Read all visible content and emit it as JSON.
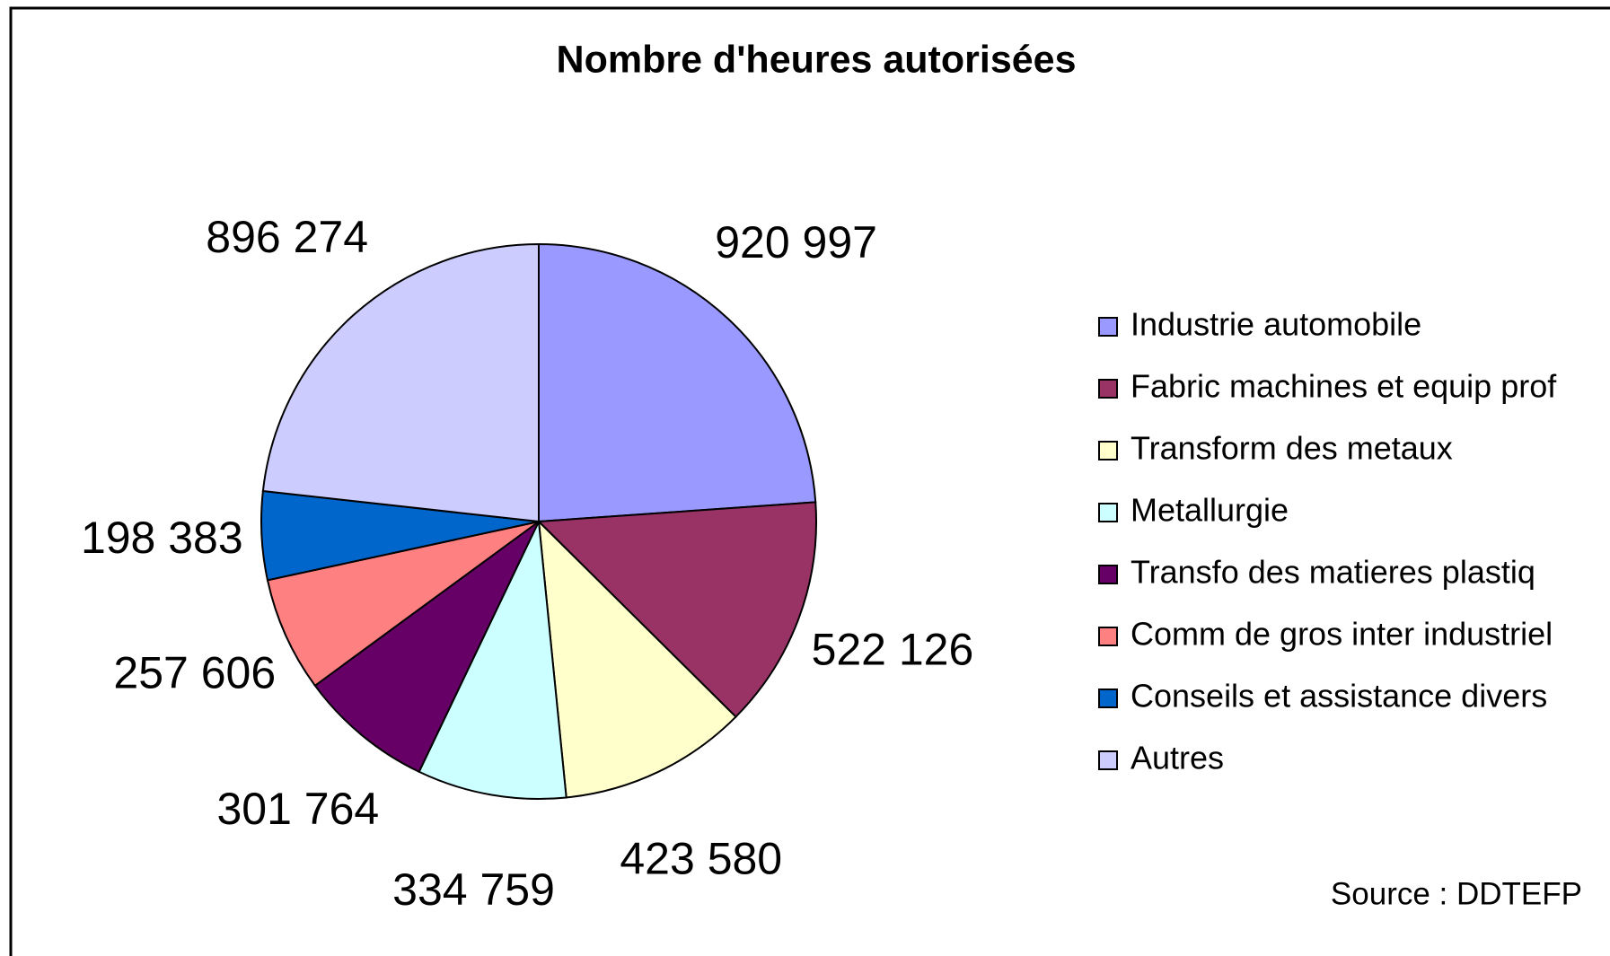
{
  "chart_data": {
    "type": "pie",
    "title": "Nombre d'heures autorisées",
    "categories": [
      "Industrie automobile",
      "Fabric machines et equip prof",
      "Transform  des metaux",
      "Metallurgie",
      "Transfo des matieres plastiq",
      "Comm de gros inter industriel",
      "Conseils et assistance divers",
      "Autres"
    ],
    "values": [
      920997,
      522126,
      423580,
      334759,
      301764,
      257606,
      198383,
      896274
    ],
    "value_labels": [
      "920 997",
      "522 126",
      "423 580",
      "334 759",
      "301 764",
      "257 606",
      "198 383",
      "896 274"
    ],
    "colors": [
      "#9999ff",
      "#993366",
      "#ffffcc",
      "#ccffff",
      "#660066",
      "#ff8080",
      "#0066cc",
      "#ccccff"
    ],
    "legend": "right",
    "source": "Source : DDTEFP"
  }
}
